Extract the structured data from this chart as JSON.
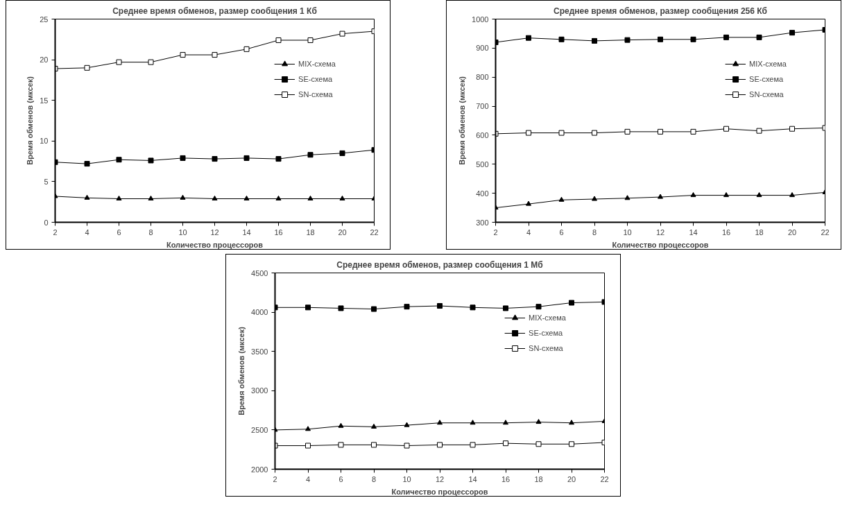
{
  "chart_data": [
    {
      "type": "line",
      "title": "Среднее время обменов, размер сообщения 1 Кб",
      "xlabel": "Количество процессоров",
      "ylabel": "Время обменов (мксек)",
      "x": [
        2,
        4,
        6,
        8,
        10,
        12,
        14,
        16,
        18,
        20,
        22
      ],
      "xlim": [
        2,
        22
      ],
      "xticks": [
        2,
        4,
        6,
        8,
        10,
        12,
        14,
        16,
        18,
        20,
        22
      ],
      "ylim": [
        0,
        25
      ],
      "yticks": [
        0,
        5,
        10,
        15,
        20,
        25
      ],
      "grid": false,
      "legend": "right",
      "series": [
        {
          "name": "MIX-схема",
          "color": "#000000",
          "marker": "triangle",
          "values": [
            3.2,
            3.0,
            2.9,
            2.9,
            3.0,
            2.9,
            2.9,
            2.9,
            2.9,
            2.9,
            2.9
          ]
        },
        {
          "name": "SE-схема",
          "color": "#000000",
          "marker": "square",
          "values": [
            7.4,
            7.2,
            7.7,
            7.6,
            7.9,
            7.8,
            7.9,
            7.8,
            8.3,
            8.5,
            8.9
          ]
        },
        {
          "name": "SN-схема",
          "color": "#000000",
          "marker": "square",
          "values": [
            18.9,
            19.0,
            19.7,
            19.7,
            20.6,
            20.6,
            21.3,
            22.4,
            22.4,
            23.2,
            23.5
          ]
        }
      ]
    },
    {
      "type": "line",
      "title": "Среднее время обменов, размер сообщения 256 Кб",
      "xlabel": "Количество процессоров",
      "ylabel": "Время обменов (мксек)",
      "x": [
        2,
        4,
        6,
        8,
        10,
        12,
        14,
        16,
        18,
        20,
        22
      ],
      "xlim": [
        2,
        22
      ],
      "xticks": [
        2,
        4,
        6,
        8,
        10,
        12,
        14,
        16,
        18,
        20,
        22
      ],
      "ylim": [
        300,
        1000
      ],
      "yticks": [
        300,
        400,
        500,
        600,
        700,
        800,
        900,
        1000
      ],
      "grid": false,
      "legend": "right",
      "series": [
        {
          "name": "MIX-схема",
          "color": "#000000",
          "marker": "triangle",
          "values": [
            350,
            363,
            377,
            380,
            383,
            387,
            393,
            393,
            393,
            393,
            403
          ]
        },
        {
          "name": "SE-схема",
          "color": "#000000",
          "marker": "square",
          "values": [
            920,
            935,
            930,
            925,
            928,
            930,
            930,
            937,
            937,
            953,
            963
          ]
        },
        {
          "name": "SN-схема",
          "color": "#000000",
          "marker": "square",
          "values": [
            605,
            608,
            608,
            608,
            612,
            612,
            612,
            622,
            615,
            622,
            625
          ]
        }
      ]
    },
    {
      "type": "line",
      "title": "Среднее время обменов, размер сообщения 1 Мб",
      "xlabel": "Количество процессоров",
      "ylabel": "Время обменов (мксек)",
      "x": [
        2,
        4,
        6,
        8,
        10,
        12,
        14,
        16,
        18,
        20,
        22
      ],
      "xlim": [
        2,
        22
      ],
      "xticks": [
        2,
        4,
        6,
        8,
        10,
        12,
        14,
        16,
        18,
        20,
        22
      ],
      "ylim": [
        2000,
        4500
      ],
      "yticks": [
        2000,
        2500,
        3000,
        3500,
        4000,
        4500
      ],
      "grid": false,
      "legend": "right",
      "series": [
        {
          "name": "MIX-схема",
          "color": "#000000",
          "marker": "triangle",
          "values": [
            2500,
            2510,
            2550,
            2540,
            2560,
            2590,
            2590,
            2590,
            2600,
            2590,
            2610
          ]
        },
        {
          "name": "SE-схема",
          "color": "#000000",
          "marker": "square",
          "values": [
            4060,
            4060,
            4050,
            4040,
            4070,
            4080,
            4060,
            4050,
            4070,
            4120,
            4130
          ]
        },
        {
          "name": "SN-схема",
          "color": "#000000",
          "marker": "square",
          "values": [
            2300,
            2300,
            2310,
            2310,
            2300,
            2310,
            2310,
            2330,
            2320,
            2320,
            2340
          ]
        }
      ]
    }
  ]
}
